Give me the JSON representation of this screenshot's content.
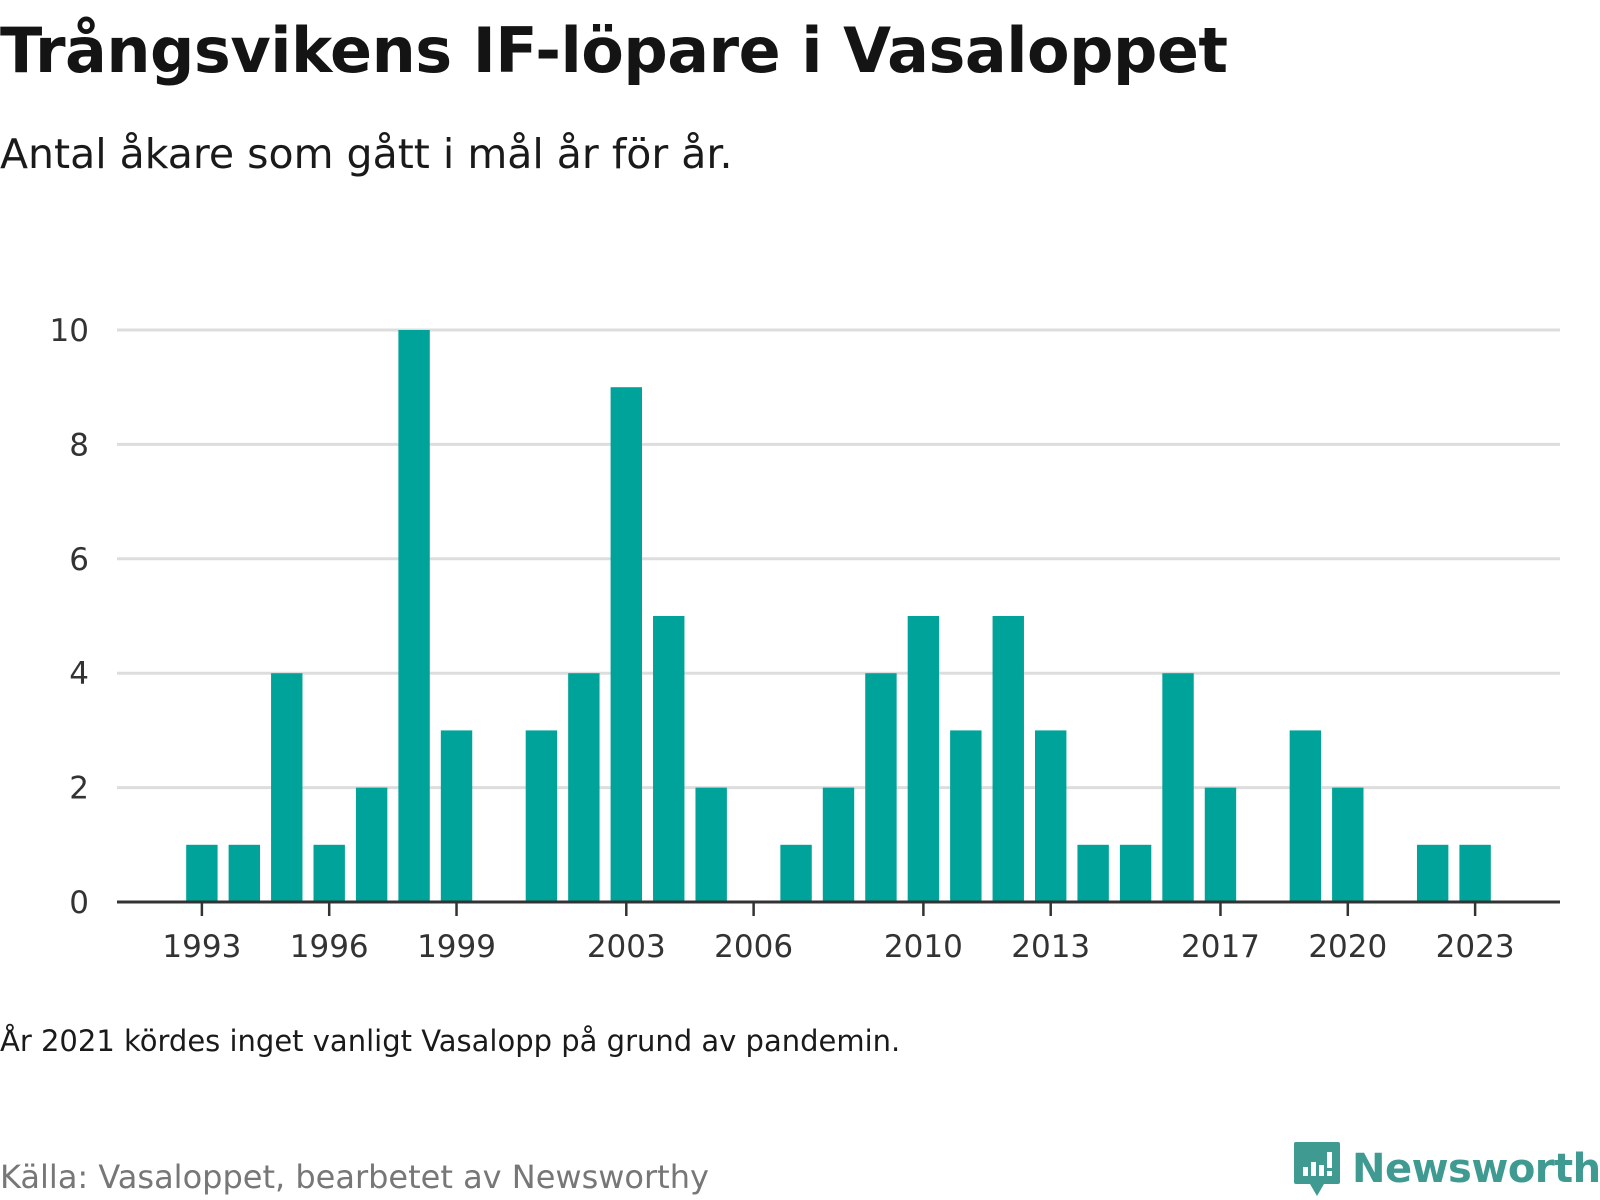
{
  "title": "Trångsvikens IF-löpare i Vasaloppet",
  "subtitle": "Antal åkare som gått i mål år för år.",
  "note": "År 2021 kördes inget vanligt Vasalopp på grund av pandemin.",
  "source": "Källa: Vasaloppet, bearbetet av Newsworthy",
  "brand": {
    "name": "Newsworthy",
    "icon": "newsworthy-logo-icon",
    "color": "#3f9b92"
  },
  "colors": {
    "bar": "#00a399",
    "grid": "#dddddd",
    "axis": "#333333"
  },
  "chart_data": {
    "type": "bar",
    "x": [
      1993,
      1994,
      1995,
      1996,
      1997,
      1998,
      1999,
      2001,
      2002,
      2003,
      2004,
      2005,
      2007,
      2008,
      2009,
      2010,
      2011,
      2012,
      2013,
      2014,
      2015,
      2016,
      2017,
      2019,
      2020,
      2022,
      2023
    ],
    "values": [
      1,
      1,
      4,
      1,
      2,
      10,
      3,
      3,
      4,
      9,
      5,
      2,
      1,
      2,
      4,
      5,
      3,
      5,
      3,
      1,
      1,
      4,
      2,
      3,
      2,
      1,
      1
    ],
    "xlim": [
      1991,
      2025
    ],
    "ylim": [
      0,
      10
    ],
    "y_ticks": [
      "0",
      "2",
      "4",
      "6",
      "8",
      "10"
    ],
    "x_ticks": [
      "1993",
      "1996",
      "1999",
      "2003",
      "2006",
      "2010",
      "2013",
      "2017",
      "2020",
      "2023"
    ],
    "grid": true,
    "xlabel": "",
    "ylabel": ""
  }
}
